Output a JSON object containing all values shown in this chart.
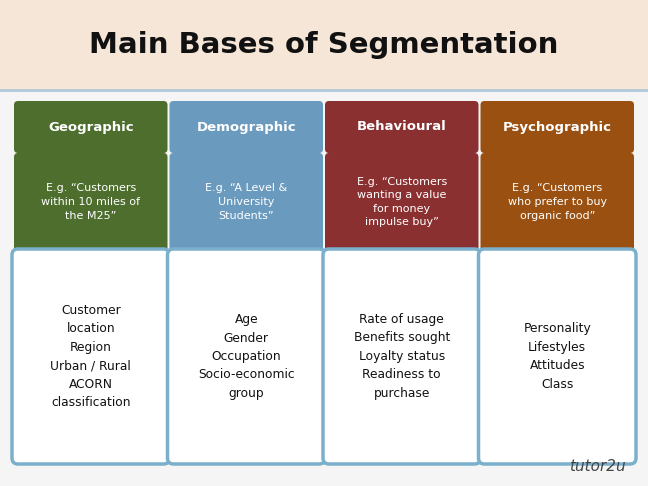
{
  "title": "Main Bases of Segmentation",
  "title_fontsize": 21,
  "background_top": "#f5e6d8",
  "background_bottom": "#e8e8e8",
  "background_content": "#f5f5f5",
  "columns": [
    {
      "header": "Geographic",
      "header_color": "#4e6e2e",
      "example": "E.g. “Customers\nwithin 10 miles of\nthe M25”",
      "example_color": "#4e6e2e",
      "details": "Customer\nlocation\nRegion\nUrban / Rural\nACORN\nclassification"
    },
    {
      "header": "Demographic",
      "header_color": "#6b9abf",
      "example": "E.g. “A Level &\nUniversity\nStudents”",
      "example_color": "#6b9abf",
      "details": "Age\nGender\nOccupation\nSocio-economic\ngroup"
    },
    {
      "header": "Behavioural",
      "header_color": "#8b3030",
      "example": "E.g. “Customers\nwanting a value\nfor money\nimpulse buy”",
      "example_color": "#8b3030",
      "details": "Rate of usage\nBenefits sought\nLoyalty status\nReadiness to\npurchase"
    },
    {
      "header": "Psychographic",
      "header_color": "#9a5010",
      "example": "E.g. “Customers\nwho prefer to buy\norganic food”",
      "example_color": "#9a5010",
      "details": "Personality\nLifestyles\nAttitudes\nClass"
    }
  ],
  "header_text_color": "#ffffff",
  "example_text_color": "#ffffff",
  "detail_text_color": "#111111",
  "detail_box_facecolor": "#ffffff",
  "detail_box_edgecolor": "#7ab0cc",
  "separator_color": "#b0c8d8",
  "watermark": "tutor2u",
  "watermark_color": "#444444"
}
